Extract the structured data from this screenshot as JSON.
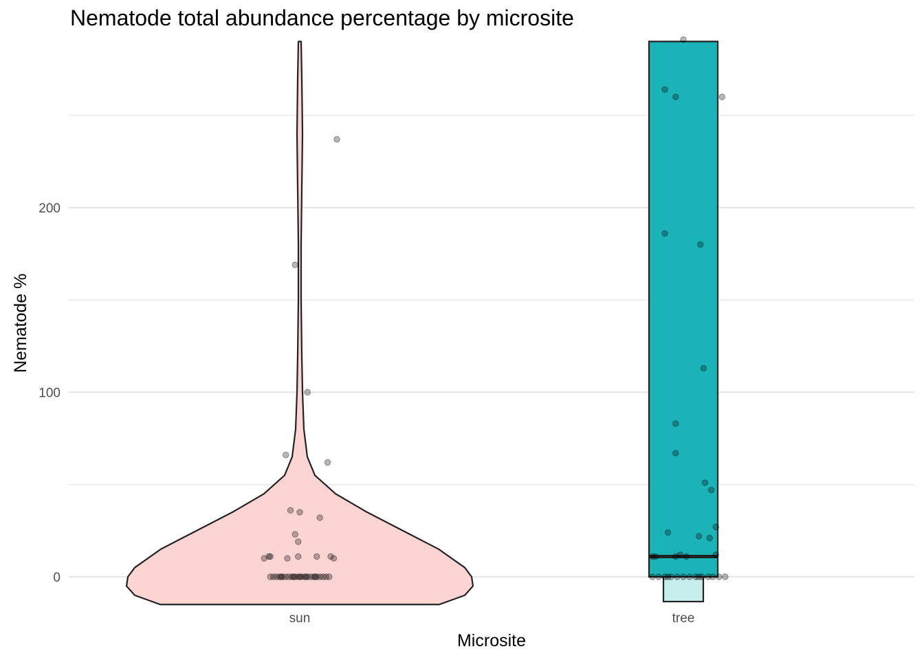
{
  "chart_data": {
    "type": "violin",
    "title": "Nematode total abundance percentage by microsite",
    "xlabel": "Microsite",
    "ylabel": "Nematode %",
    "categories": [
      "sun",
      "tree"
    ],
    "yticks": [
      0,
      100,
      200
    ],
    "ylim": [
      -15,
      290
    ],
    "grid": true,
    "legend": "none",
    "colors": {
      "sun": "#f8766d",
      "tree": "#00bfc4",
      "outline": "#222222",
      "grid": "#e6e6e6",
      "point": "#000000"
    },
    "series": [
      {
        "category": "sun",
        "boxplot": null,
        "points": [
          [
            -0.19,
            0
          ],
          [
            -0.17,
            0
          ],
          [
            -0.15,
            0
          ],
          [
            -0.13,
            0
          ],
          [
            -0.11,
            0
          ],
          [
            -0.09,
            0
          ],
          [
            -0.07,
            0
          ],
          [
            -0.05,
            0
          ],
          [
            -0.03,
            0
          ],
          [
            -0.01,
            0
          ],
          [
            0.01,
            0
          ],
          [
            0.03,
            0
          ],
          [
            0.05,
            0
          ],
          [
            0.07,
            0
          ],
          [
            0.09,
            0
          ],
          [
            0.11,
            0
          ],
          [
            0.13,
            0
          ],
          [
            0.15,
            0
          ],
          [
            0.17,
            0
          ],
          [
            0.19,
            0
          ],
          [
            -0.12,
            0
          ],
          [
            -0.04,
            0
          ],
          [
            0.0,
            0
          ],
          [
            0.04,
            0
          ],
          [
            0.1,
            0
          ],
          [
            0.24,
            237
          ],
          [
            -0.03,
            169
          ],
          [
            0.05,
            100
          ],
          [
            -0.09,
            66
          ],
          [
            0.18,
            62
          ],
          [
            -0.06,
            36
          ],
          [
            0.0,
            35
          ],
          [
            0.13,
            32
          ],
          [
            -0.03,
            23
          ],
          [
            -0.01,
            19
          ],
          [
            -0.23,
            10
          ],
          [
            -0.2,
            11
          ],
          [
            -0.19,
            11
          ],
          [
            -0.08,
            10
          ],
          [
            -0.01,
            11
          ],
          [
            0.11,
            11
          ],
          [
            0.2,
            11
          ],
          [
            0.22,
            10
          ]
        ]
      },
      {
        "category": "tree",
        "boxplot": {
          "lower": 0,
          "median": 11,
          "upper": 290
        },
        "points": [
          [
            -0.2,
            0
          ],
          [
            -0.16,
            0
          ],
          [
            -0.12,
            0
          ],
          [
            -0.08,
            0
          ],
          [
            -0.04,
            0
          ],
          [
            0.0,
            0
          ],
          [
            0.04,
            0
          ],
          [
            0.08,
            0
          ],
          [
            0.12,
            0
          ],
          [
            0.16,
            0
          ],
          [
            0.19,
            0
          ],
          [
            0.23,
            0
          ],
          [
            0.27,
            0
          ],
          [
            -0.1,
            0
          ],
          [
            0.1,
            0
          ],
          [
            0.0,
            291
          ],
          [
            -0.12,
            264
          ],
          [
            -0.05,
            260
          ],
          [
            0.25,
            260
          ],
          [
            -0.12,
            186
          ],
          [
            0.11,
            180
          ],
          [
            0.13,
            113
          ],
          [
            -0.05,
            83
          ],
          [
            -0.05,
            67
          ],
          [
            0.14,
            51
          ],
          [
            0.18,
            47
          ],
          [
            -0.02,
            12
          ],
          [
            -0.1,
            24
          ],
          [
            0.21,
            27
          ],
          [
            0.1,
            22
          ],
          [
            0.17,
            21
          ],
          [
            0.21,
            12
          ],
          [
            -0.2,
            11
          ],
          [
            -0.18,
            11
          ],
          [
            -0.05,
            11
          ],
          [
            0.02,
            11
          ]
        ]
      }
    ]
  }
}
